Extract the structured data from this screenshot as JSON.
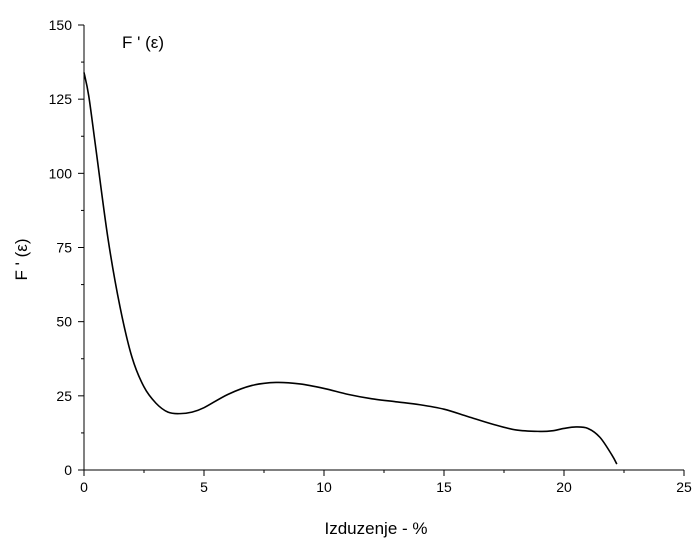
{
  "chart_data": {
    "type": "line",
    "title": "",
    "annotation": "F ' (ε)",
    "xlabel": "Izduzenje - %",
    "ylabel": "F ' (ε)",
    "xlim": [
      0,
      25
    ],
    "ylim": [
      0,
      150
    ],
    "x_ticks": [
      0,
      5,
      10,
      15,
      20,
      25
    ],
    "y_ticks": [
      0,
      25,
      50,
      75,
      100,
      125,
      150
    ],
    "grid": false,
    "series": [
      {
        "x": [
          0,
          0.2,
          0.5,
          1.0,
          1.5,
          2.0,
          2.5,
          3.0,
          3.5,
          4.0,
          4.5,
          5.0,
          6.0,
          7.0,
          8.0,
          9.0,
          10.0,
          11.0,
          12.0,
          13.0,
          14.0,
          15.0,
          16.0,
          17.0,
          18.0,
          19.0,
          19.5,
          20.0,
          20.5,
          21.0,
          21.5,
          22.0,
          22.2
        ],
        "y": [
          134,
          126,
          108,
          78,
          55,
          38,
          28,
          22.5,
          19.5,
          19,
          19.5,
          21,
          25.5,
          28.5,
          29.5,
          29,
          27.5,
          25.5,
          24,
          23,
          22,
          20.5,
          18,
          15.5,
          13.5,
          13,
          13.2,
          14,
          14.5,
          14,
          11,
          5,
          2
        ]
      }
    ]
  }
}
